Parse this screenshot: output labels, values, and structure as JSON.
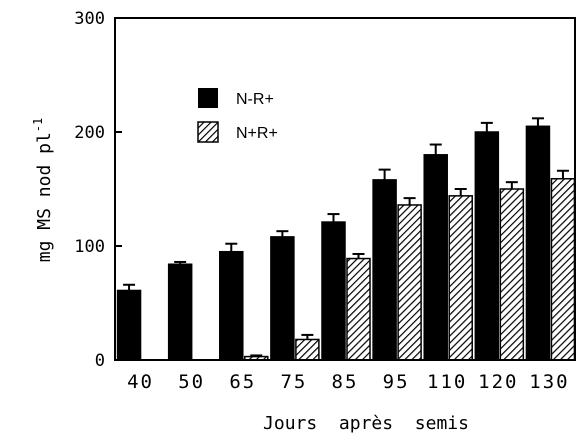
{
  "colors": {
    "solid_fill": "#000000",
    "hatch_line": "#000000",
    "axis": "#000000",
    "background": "#ffffff"
  },
  "chart_data": {
    "type": "bar",
    "title": "",
    "xlabel": "Jours  après  semis",
    "ylabel": "mg MS nod pl",
    "ylabel_superscript": "-1",
    "ylim": [
      0,
      300
    ],
    "yticks": [
      "0",
      "100",
      "200",
      "300"
    ],
    "categories": [
      "40",
      "50",
      "65",
      "75",
      "85",
      "95",
      "110",
      "120",
      "130"
    ],
    "legend_position": "upper-left inside plot",
    "grid": false,
    "series": [
      {
        "name": "N-R+",
        "pattern": "solid",
        "values": [
          61,
          84,
          95,
          108,
          121,
          158,
          180,
          200,
          205
        ],
        "errors": [
          5,
          2,
          7,
          5,
          7,
          9,
          9,
          8,
          7
        ]
      },
      {
        "name": "N+R+",
        "pattern": "hatched",
        "values": [
          0,
          0,
          3,
          18,
          89,
          136,
          144,
          150,
          159
        ],
        "errors": [
          0,
          0,
          1,
          4,
          4,
          6,
          6,
          6,
          7
        ]
      }
    ]
  }
}
